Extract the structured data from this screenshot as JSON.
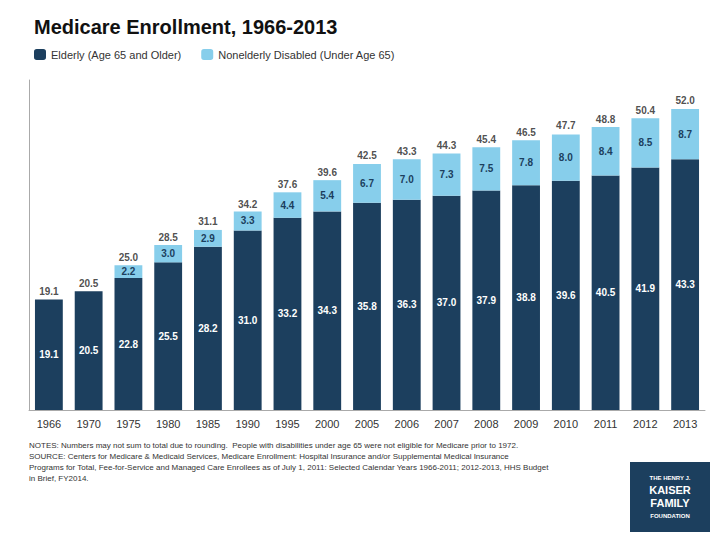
{
  "chart_data": {
    "type": "bar",
    "title": "Medicare Enrollment, 1966-2013",
    "categories": [
      "1966",
      "1970",
      "1975",
      "1980",
      "1985",
      "1990",
      "1995",
      "2000",
      "2005",
      "2006",
      "2007",
      "2008",
      "2009",
      "2010",
      "2011",
      "2012",
      "2013"
    ],
    "series": [
      {
        "name": "Elderly (Age 65 and Older)",
        "color": "#1c3f5e",
        "values": [
          19.1,
          20.5,
          22.8,
          25.5,
          28.2,
          31.0,
          33.2,
          34.3,
          35.8,
          36.3,
          37.0,
          37.9,
          38.8,
          39.6,
          40.5,
          41.9,
          43.3
        ],
        "value_labels": [
          "19.1",
          "20.5",
          "22.8",
          "25.5",
          "28.2",
          "31.0",
          "33.2",
          "34.3",
          "35.8",
          "36.3",
          "37.0",
          "37.9",
          "38.8",
          "39.6",
          "40.5",
          "41.9",
          "43.3"
        ]
      },
      {
        "name": "Nonelderly Disabled (Under Age 65)",
        "color": "#87ceeb",
        "values": [
          0.0,
          0.0,
          2.2,
          3.0,
          2.9,
          3.3,
          4.4,
          5.4,
          6.7,
          7.0,
          7.3,
          7.5,
          7.8,
          8.0,
          8.4,
          8.5,
          8.7
        ],
        "value_labels": [
          null,
          null,
          "2.2",
          "3.0",
          "2.9",
          "3.3",
          "4.4",
          "5.4",
          "6.7",
          "7.0",
          "7.3",
          "7.5",
          "7.8",
          "8.0",
          "8.4",
          "8.5",
          "8.7"
        ]
      }
    ],
    "totals": {
      "values": [
        19.1,
        20.5,
        25.0,
        28.5,
        31.1,
        34.2,
        37.6,
        39.6,
        42.5,
        43.3,
        44.3,
        45.4,
        46.5,
        47.7,
        48.8,
        50.4,
        52.0
      ],
      "value_labels": [
        "19.1",
        "20.5",
        "25.0",
        "28.5",
        "31.1",
        "34.2",
        "37.6",
        "39.6",
        "42.5",
        "43.3",
        "44.3",
        "45.4",
        "46.5",
        "47.7",
        "48.8",
        "50.4",
        "52.0"
      ]
    },
    "stacked": true,
    "data_labels": true,
    "ylim": [
      0,
      57
    ],
    "grid": false,
    "legend": "upper left",
    "tick_labels": "x",
    "annotations": [
      "NOTES: Numbers may not sum to total due to rounding.  People with disabilities under age 65 were not eligible for Medicare prior to 1972.\nSOURCE: Centers for Medicare & Medicaid Services, Medicare Enrollment: Hospital Insurance and/or Supplemental Medical Insurance\nPrograms for Total, Fee-for-Service and Managed Care Enrollees as of July 1, 2011: Selected Calendar Years 1966-2011; 2012-2013, HHS Budget\nin Brief, FY2014.",
      "THE HENRY J.",
      "KAISER",
      "FAMILY",
      "FOUNDATION"
    ]
  }
}
